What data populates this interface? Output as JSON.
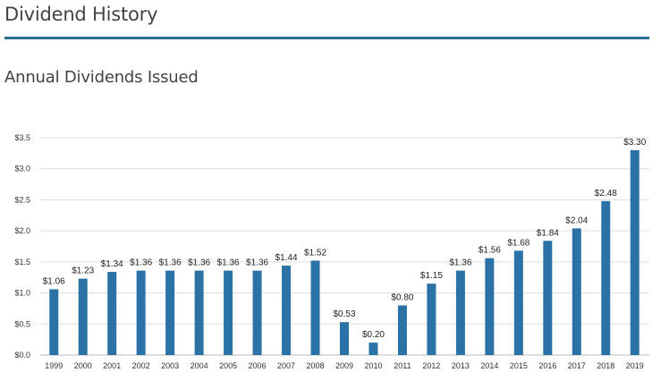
{
  "page": {
    "title": "Dividend History"
  },
  "chart_data": {
    "type": "bar",
    "title": "Annual Dividends Issued",
    "xlabel": "",
    "ylabel": "",
    "categories": [
      "1999",
      "2000",
      "2001",
      "2002",
      "2003",
      "2004",
      "2005",
      "2006",
      "2007",
      "2008",
      "2009",
      "2010",
      "2011",
      "2012",
      "2013",
      "2014",
      "2015",
      "2016",
      "2017",
      "2018",
      "2019"
    ],
    "values": [
      1.06,
      1.23,
      1.34,
      1.36,
      1.36,
      1.36,
      1.36,
      1.36,
      1.44,
      1.52,
      0.53,
      0.2,
      0.8,
      1.15,
      1.36,
      1.56,
      1.68,
      1.84,
      2.04,
      2.48,
      3.3
    ],
    "data_labels": [
      "$1.06",
      "$1.23",
      "$1.34",
      "$1.36",
      "$1.36",
      "$1.36",
      "$1.36",
      "$1.36",
      "$1.44",
      "$1.52",
      "$0.53",
      "$0.20",
      "$0.80",
      "$1.15",
      "$1.36",
      "$1.56",
      "$1.68",
      "$1.84",
      "$2.04",
      "$2.48",
      "$3.30"
    ],
    "y_ticks": [
      0,
      0.5,
      1,
      1.5,
      2,
      2.5,
      3,
      3.5
    ],
    "y_tick_labels": [
      "$0.0",
      "$0.5",
      "$1.0",
      "$1.5",
      "$2.0",
      "$2.5",
      "$3.0",
      "$3.5"
    ],
    "ylim": [
      0,
      3.5
    ],
    "grid": true,
    "legend": "none",
    "colors": {
      "bar": "#2b72a6",
      "grid": "#dddddd",
      "axis": "#bbbbbb"
    }
  }
}
